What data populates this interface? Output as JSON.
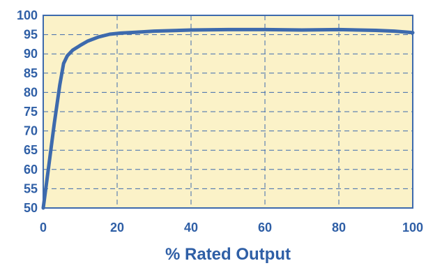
{
  "chart_data": {
    "type": "line",
    "title": "",
    "xlabel": "% Rated Output",
    "ylabel": "",
    "xlim": [
      0,
      100
    ],
    "ylim": [
      50,
      100
    ],
    "x_ticks": [
      "0",
      "20",
      "40",
      "60",
      "80",
      "100"
    ],
    "y_ticks": [
      "50",
      "55",
      "60",
      "65",
      "70",
      "75",
      "80",
      "85",
      "90",
      "95",
      "100"
    ],
    "grid": true,
    "legend": "none",
    "series": [
      {
        "x": [
          0,
          1.5,
          3,
          4.5,
          5.5,
          6.5,
          8,
          10,
          12,
          15,
          18,
          21,
          25,
          30,
          40,
          50,
          60,
          70,
          80,
          90,
          95,
          100
        ],
        "y": [
          50,
          61,
          72,
          82,
          87.5,
          89.5,
          91,
          92.2,
          93.3,
          94.4,
          95.1,
          95.4,
          95.6,
          95.9,
          96.2,
          96.3,
          96.3,
          96.2,
          96.3,
          96.1,
          95.9,
          95.5
        ]
      }
    ],
    "colors": {
      "plot_background": "#fbf2c8",
      "line": "#3d6aad",
      "frame": "#3d6aad",
      "grid": "#3d6aad",
      "tick_text": "#2f5fa6"
    }
  }
}
